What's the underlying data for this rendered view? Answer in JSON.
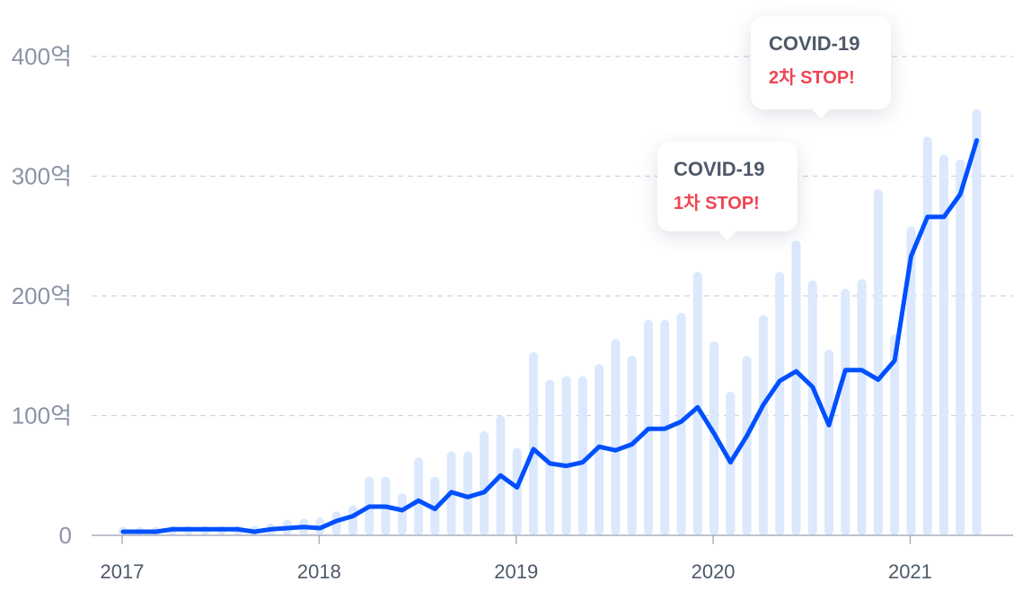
{
  "chart_data": {
    "type": "bar+line",
    "y_tick_labels": [
      "0",
      "100억",
      "200억",
      "300억",
      "400억"
    ],
    "y_ticks": [
      0,
      100,
      200,
      300,
      400
    ],
    "ylim": [
      0,
      400
    ],
    "x_tick_labels": [
      "2017",
      "2018",
      "2019",
      "2020",
      "2021"
    ],
    "x_tick_months": [
      0,
      12,
      24,
      36,
      48
    ],
    "grid": true,
    "series": [
      {
        "type": "bar",
        "color": "#dbe8fd",
        "x": [
          0,
          1,
          2,
          3,
          4,
          5,
          6,
          7,
          8,
          9,
          10,
          11,
          12,
          13,
          14,
          15,
          16,
          17,
          18,
          19,
          20,
          21,
          22,
          23,
          24,
          25,
          26,
          27,
          28,
          29,
          30,
          31,
          32,
          33,
          34,
          35,
          36,
          37,
          38,
          39,
          40,
          41,
          42,
          43,
          44,
          45,
          46,
          47,
          48,
          49,
          50,
          51,
          52
        ],
        "values": [
          7,
          7,
          7,
          8,
          8,
          8,
          8,
          8,
          8,
          10,
          13,
          14,
          15,
          20,
          25,
          49,
          49,
          35,
          65,
          49,
          70,
          70,
          87,
          100,
          73,
          153,
          130,
          133,
          133,
          143,
          164,
          150,
          180,
          180,
          186,
          220,
          162,
          120,
          150,
          184,
          220,
          246,
          213,
          155,
          206,
          214,
          289,
          168,
          258,
          333,
          318,
          314,
          356
        ]
      },
      {
        "type": "line",
        "color": "#0050ff",
        "x": [
          0,
          1,
          2,
          3,
          4,
          5,
          6,
          7,
          8,
          9,
          10,
          11,
          12,
          13,
          14,
          15,
          16,
          17,
          18,
          19,
          20,
          21,
          22,
          23,
          24,
          25,
          26,
          27,
          28,
          29,
          30,
          31,
          32,
          33,
          34,
          35,
          36,
          37,
          38,
          39,
          40,
          41,
          42,
          43,
          44,
          45,
          46,
          47,
          48,
          49,
          50,
          51,
          52
        ],
        "values": [
          3,
          3,
          3,
          5,
          5,
          5,
          5,
          5,
          3,
          5,
          6,
          7,
          6,
          12,
          16,
          24,
          24,
          21,
          29,
          22,
          36,
          32,
          36,
          50,
          40,
          72,
          60,
          58,
          61,
          74,
          71,
          76,
          89,
          89,
          95,
          107,
          85,
          61,
          83,
          109,
          129,
          137,
          124,
          92,
          138,
          138,
          130,
          146,
          233,
          266,
          266,
          285,
          330
        ]
      }
    ],
    "annotations": [
      {
        "line1": "COVID-19",
        "line2": "1차 STOP!"
      },
      {
        "line1": "COVID-19",
        "line2": "2차 STOP!"
      }
    ]
  }
}
